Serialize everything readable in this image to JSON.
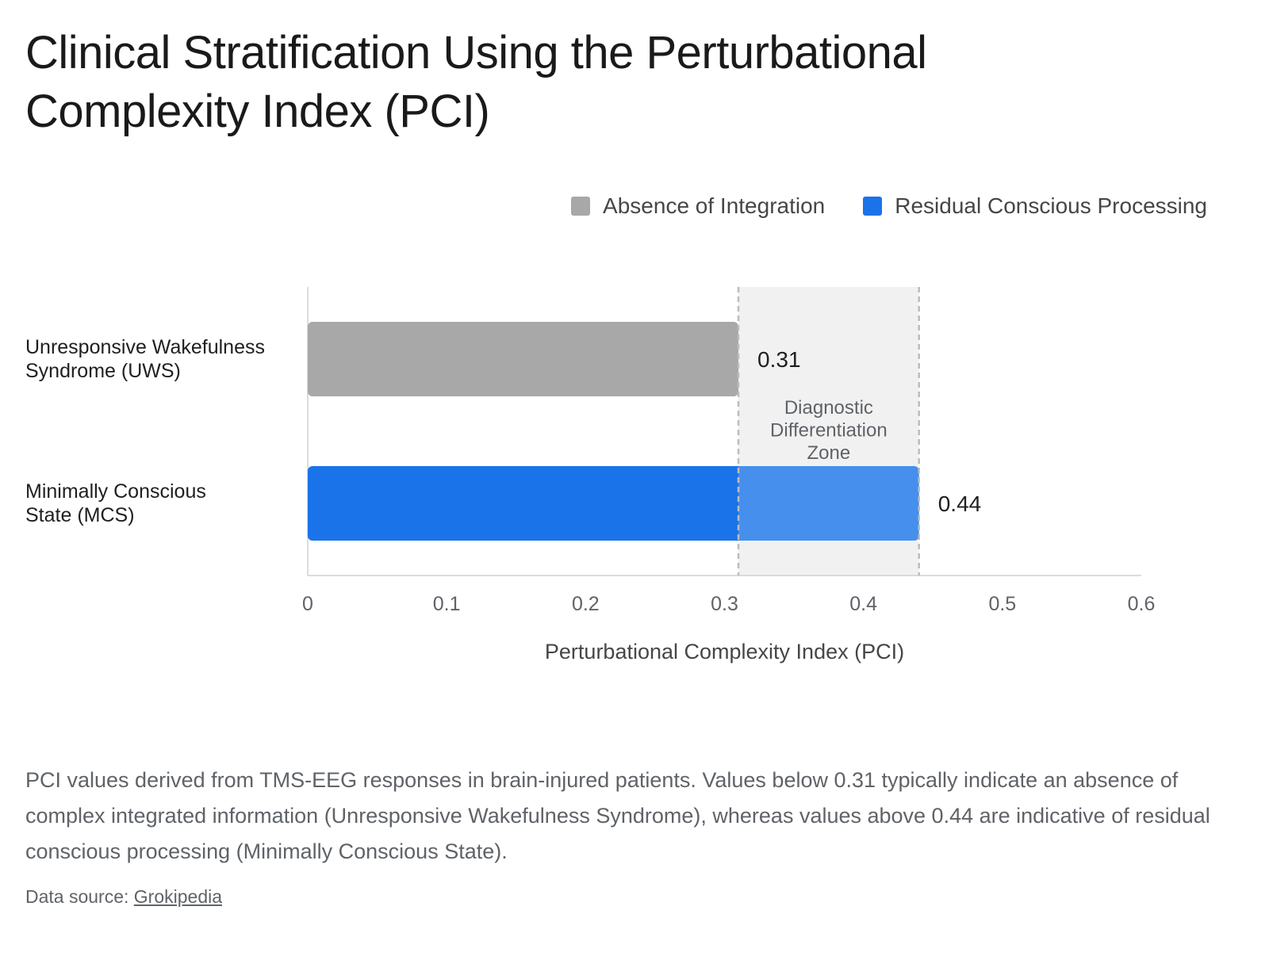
{
  "title": "Clinical Stratification Using the Perturbational Complexity Index (PCI)",
  "legend": [
    {
      "label": "Absence of Integration",
      "color": "#a8a8a8"
    },
    {
      "label": "Residual Conscious Processing",
      "color": "#1a73e8"
    }
  ],
  "chart_data": {
    "type": "bar",
    "orientation": "horizontal",
    "categories": [
      "Unresponsive Wakefulness Syndrome (UWS)",
      "Minimally Conscious State (MCS)"
    ],
    "category_lines": [
      [
        "Unresponsive Wakefulness",
        "Syndrome (UWS)"
      ],
      [
        "Minimally Conscious",
        "State (MCS)"
      ]
    ],
    "values": [
      0.31,
      0.44
    ],
    "value_labels": [
      "0.31",
      "0.44"
    ],
    "bar_colors": [
      "#a8a8a8",
      "#1a73e8"
    ],
    "xlabel": "Perturbational Complexity Index (PCI)",
    "xlim": [
      0,
      0.6
    ],
    "xticks": [
      0,
      0.1,
      0.2,
      0.3,
      0.4,
      0.5,
      0.6
    ],
    "xtick_labels": [
      "0",
      "0.1",
      "0.2",
      "0.3",
      "0.4",
      "0.5",
      "0.6"
    ],
    "grid": false,
    "legend_position": "top-right",
    "shaded_band": {
      "from": 0.31,
      "to": 0.44,
      "label_lines": [
        "Diagnostic",
        "Differentiation",
        "Zone"
      ]
    }
  },
  "caption": "PCI values derived from TMS-EEG responses in brain-injured patients. Values below 0.31 typically indicate an absence of complex integrated information (Unresponsive Wakefulness Syndrome), whereas values above 0.44 are indicative of residual conscious processing (Minimally Conscious State).",
  "source": {
    "prefix": "Data source: ",
    "link_text": "Grokipedia"
  }
}
